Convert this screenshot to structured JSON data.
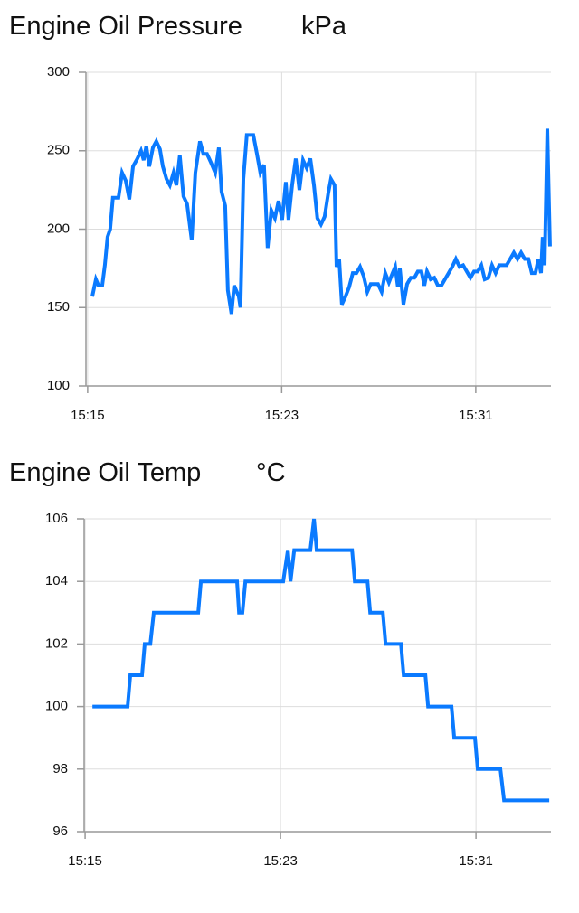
{
  "chart_data": [
    {
      "type": "line",
      "title": "Engine Oil Pressure",
      "unit": "kPa",
      "color": "#0a7aff",
      "grid": true,
      "xlim": [
        914.93,
        934.1
      ],
      "xticks": [
        {
          "value": 915,
          "label": "15:15"
        },
        {
          "value": 923,
          "label": "15:23"
        },
        {
          "value": 931,
          "label": "15:31"
        }
      ],
      "ylim": [
        100,
        300
      ],
      "yticks": [
        100,
        150,
        200,
        250,
        300
      ],
      "x": [
        915.19,
        915.34,
        915.45,
        915.6,
        915.71,
        915.82,
        915.93,
        916.04,
        916.27,
        916.42,
        916.57,
        916.72,
        916.87,
        917.05,
        917.2,
        917.31,
        917.42,
        917.54,
        917.69,
        917.83,
        917.98,
        918.1,
        918.25,
        918.39,
        918.54,
        918.66,
        918.8,
        918.95,
        919.1,
        919.29,
        919.44,
        919.63,
        919.77,
        919.92,
        920.07,
        920.26,
        920.41,
        920.52,
        920.67,
        920.78,
        920.93,
        921.04,
        921.23,
        921.3,
        921.42,
        921.56,
        921.83,
        921.98,
        922.12,
        922.27,
        922.42,
        922.57,
        922.72,
        922.87,
        923.02,
        923.17,
        923.28,
        923.43,
        923.58,
        923.73,
        923.88,
        924.03,
        924.18,
        924.33,
        924.47,
        924.62,
        924.77,
        924.92,
        925.03,
        925.18,
        925.26,
        925.37,
        925.48,
        925.63,
        925.78,
        925.93,
        926.08,
        926.23,
        926.38,
        926.53,
        926.67,
        926.82,
        926.97,
        927.12,
        927.27,
        927.42,
        927.57,
        927.68,
        927.79,
        927.87,
        928.02,
        928.17,
        928.32,
        928.47,
        928.61,
        928.76,
        928.88,
        928.99,
        929.14,
        929.29,
        929.44,
        929.58,
        929.73,
        929.88,
        930.03,
        930.18,
        930.33,
        930.48,
        930.63,
        930.78,
        930.93,
        931.08,
        931.23,
        931.37,
        931.52,
        931.67,
        931.82,
        931.97,
        932.12,
        932.27,
        932.42,
        932.57,
        932.72,
        932.87,
        933.02,
        933.17,
        933.31,
        933.46,
        933.58,
        933.69,
        933.76,
        933.84,
        933.95,
        934.06
      ],
      "values": [
        157,
        168,
        164,
        164,
        177,
        195,
        200,
        220,
        220,
        236,
        231,
        219,
        240,
        245,
        250,
        244,
        253,
        240,
        252,
        256,
        251,
        240,
        232,
        228,
        236,
        228,
        247,
        221,
        216,
        193,
        236,
        256,
        248,
        248,
        243,
        236,
        252,
        224,
        215,
        161,
        146,
        164,
        157,
        150,
        232,
        260,
        260,
        248,
        236,
        241,
        188,
        212,
        207,
        218,
        206,
        230,
        206,
        228,
        245,
        225,
        244,
        239,
        245,
        228,
        207,
        203,
        208,
        223,
        232,
        228,
        176,
        181,
        152,
        157,
        163,
        172,
        172,
        176,
        170,
        160,
        165,
        165,
        165,
        160,
        172,
        166,
        172,
        176,
        163,
        175,
        152,
        165,
        169,
        169,
        173,
        173,
        164,
        173,
        168,
        169,
        164,
        164,
        168,
        172,
        176,
        181,
        176,
        177,
        173,
        169,
        173,
        173,
        177,
        168,
        169,
        177,
        172,
        177,
        177,
        177,
        181,
        185,
        181,
        185,
        181,
        181,
        172,
        172,
        181,
        172,
        195,
        177,
        264,
        189
      ]
    },
    {
      "type": "line",
      "title": "Engine Oil Temp",
      "unit": "°C",
      "color": "#0a7aff",
      "grid": true,
      "xlim": [
        914.96,
        934.07
      ],
      "xticks": [
        {
          "value": 915,
          "label": "15:15"
        },
        {
          "value": 923,
          "label": "15:23"
        },
        {
          "value": 931,
          "label": "15:31"
        }
      ],
      "ylim": [
        96,
        106
      ],
      "yticks": [
        96,
        98,
        100,
        102,
        104,
        106
      ],
      "x": [
        915.3,
        916.74,
        916.85,
        917.33,
        917.44,
        917.67,
        917.81,
        919.63,
        919.74,
        921.22,
        921.3,
        921.44,
        921.56,
        923.11,
        923.3,
        923.41,
        923.56,
        924.22,
        924.37,
        924.48,
        925.93,
        926.04,
        926.56,
        926.67,
        927.19,
        927.3,
        927.93,
        928.04,
        928.93,
        929.04,
        930.0,
        930.11,
        930.96,
        931.07,
        932.0,
        932.15,
        934.0
      ],
      "values": [
        100,
        100,
        101,
        101,
        102,
        102,
        103,
        103,
        104,
        104,
        103,
        103,
        104,
        104,
        105,
        104,
        105,
        105,
        106,
        105,
        105,
        104,
        104,
        103,
        103,
        102,
        102,
        101,
        101,
        100,
        100,
        99,
        99,
        98,
        98,
        97,
        97
      ]
    }
  ]
}
